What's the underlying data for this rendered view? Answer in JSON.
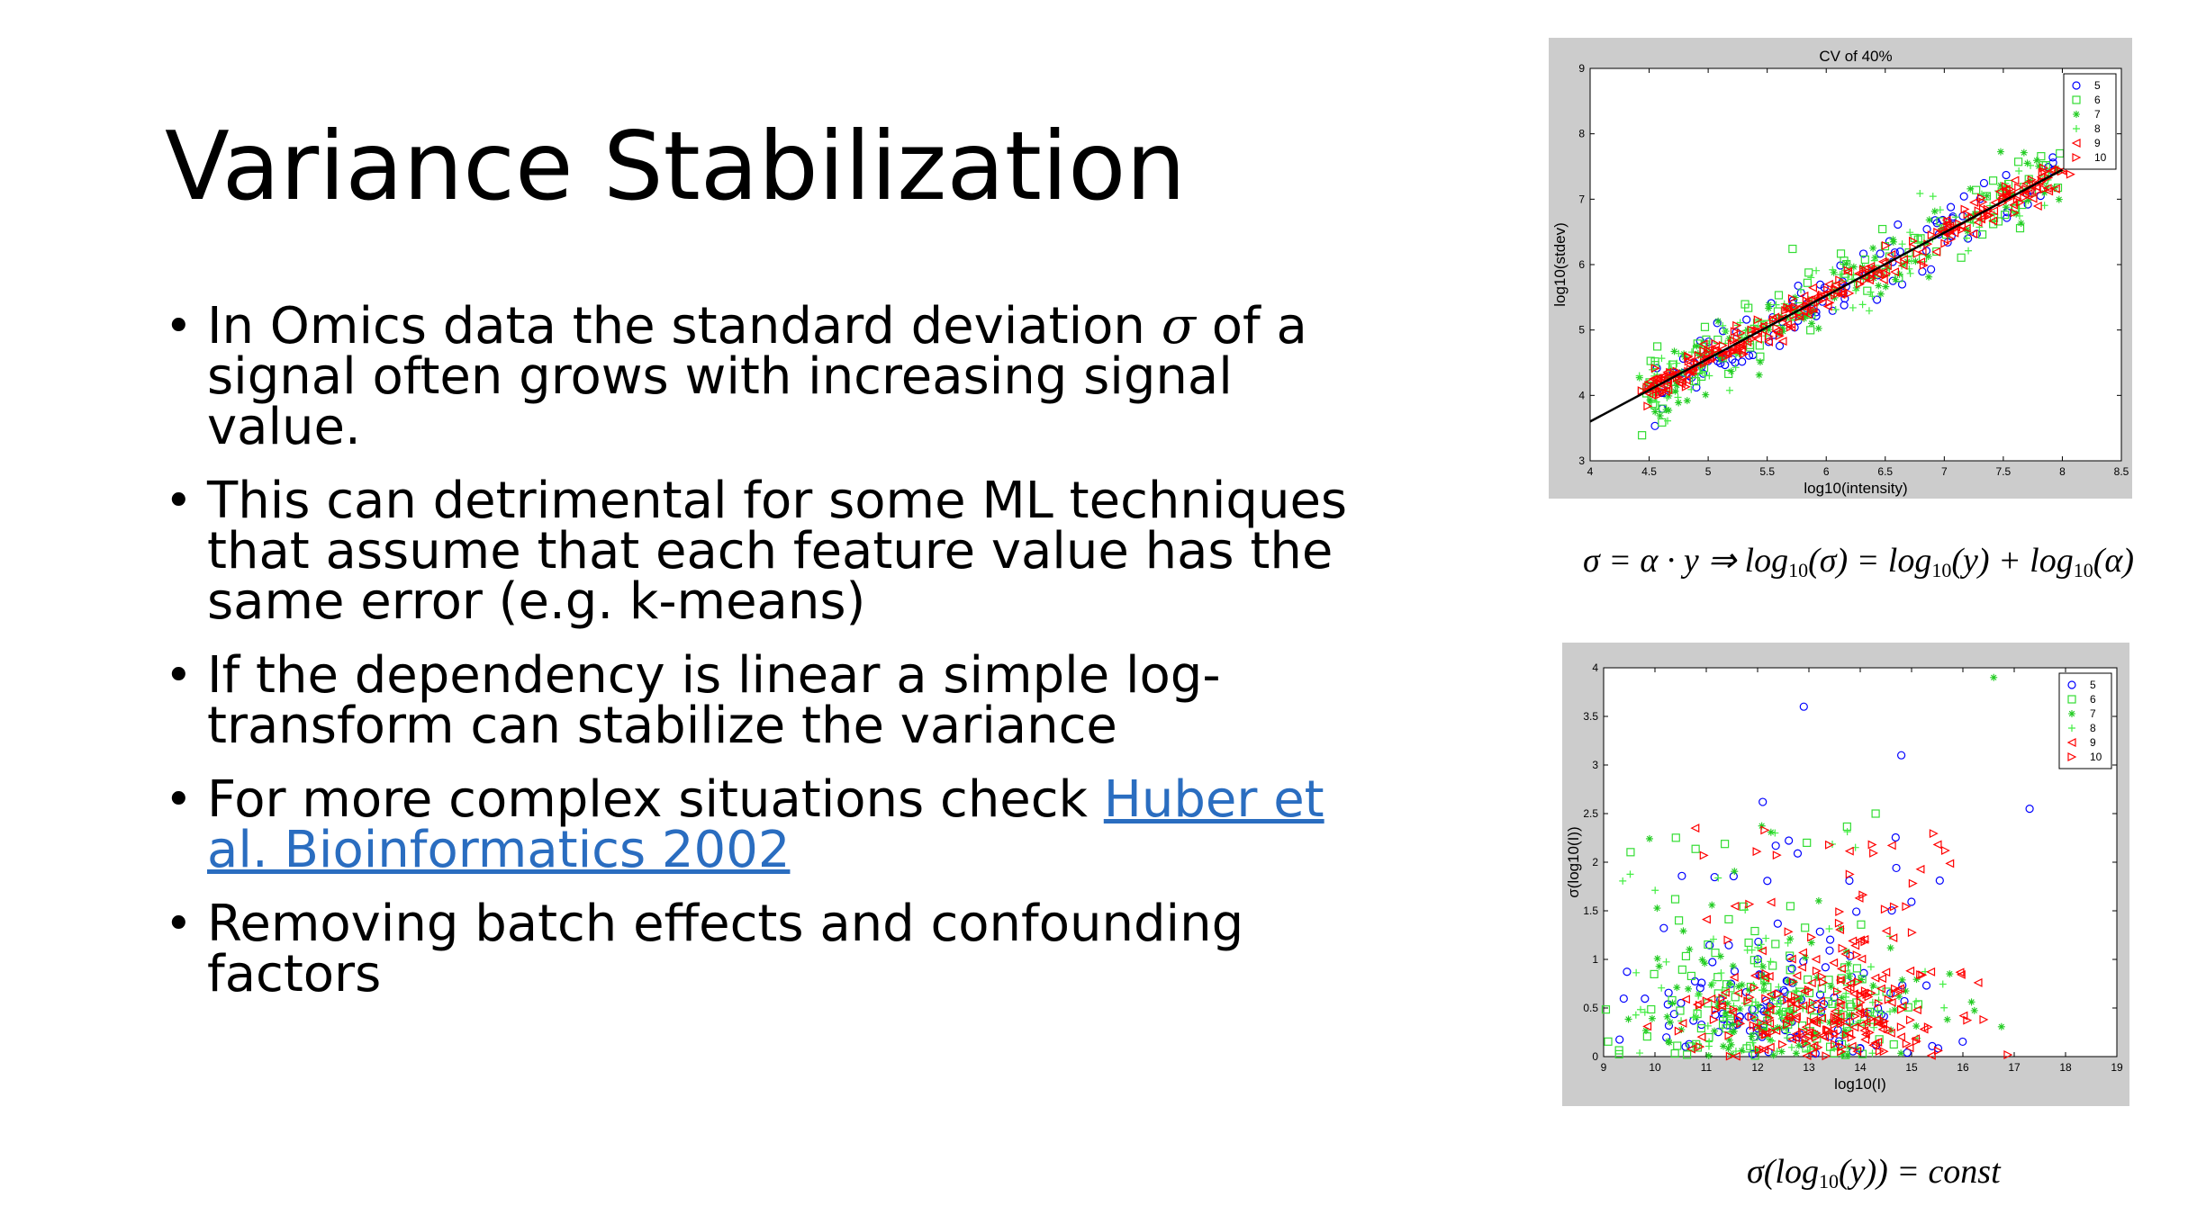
{
  "slide": {
    "title": "Variance Stabilization",
    "bullets": [
      {
        "pre": "In Omics data the standard deviation ",
        "sym": "σ",
        "post": " of a signal often grows with increasing signal value."
      },
      {
        "text": "This can detrimental for some ML techniques that assume that each feature value has the same error (e.g. k-means)"
      },
      {
        "text": "If the dependency is linear a simple log-transform can stabilize the variance"
      },
      {
        "pre": "For more complex situations check ",
        "link": "Huber et al. Bioinformatics 2002"
      },
      {
        "text": "Removing batch effects and confounding factors"
      }
    ],
    "bullet_glyph": "•"
  },
  "formulas": {
    "top": {
      "lhs": "σ = α · y ⇒ log",
      "sub": "10",
      "a": "(σ) = log",
      "b": "(y) + log",
      "c": "(α)"
    },
    "bottom": {
      "pre": "σ(log",
      "sub": "10",
      "post": "(y)) = ",
      "const": "const"
    }
  },
  "chart_data": [
    {
      "type": "scatter",
      "title": "CV of 40%",
      "xlabel": "log10(intensity)",
      "ylabel": "log10(stdev)",
      "xlim": [
        4,
        8.5
      ],
      "ylim": [
        3,
        9
      ],
      "xticks": [
        "4",
        "4.5",
        "5",
        "5.5",
        "6",
        "6.5",
        "7",
        "7.5",
        "8",
        "8.5"
      ],
      "yticks": [
        "3",
        "4",
        "5",
        "6",
        "7",
        "8",
        "9"
      ],
      "legend": [
        {
          "label": "5",
          "color": "#0000ff",
          "marker": "circle"
        },
        {
          "label": "6",
          "color": "#33dd33",
          "marker": "square"
        },
        {
          "label": "7",
          "color": "#22cc22",
          "marker": "star"
        },
        {
          "label": "8",
          "color": "#44ee44",
          "marker": "plus"
        },
        {
          "label": "9",
          "color": "#ff0000",
          "marker": "triangle-left"
        },
        {
          "label": "10",
          "color": "#ff0000",
          "marker": "triangle-right"
        }
      ],
      "fit_line": {
        "x": [
          4,
          8
        ],
        "y": [
          3.6,
          7.45
        ],
        "color": "#000000"
      },
      "legend_position": "top-right"
    },
    {
      "type": "scatter",
      "title": "",
      "xlabel": "log10(I)",
      "ylabel": "σ(log10(I))",
      "xlim": [
        9,
        19
      ],
      "ylim": [
        0,
        4
      ],
      "xticks": [
        "9",
        "10",
        "11",
        "12",
        "13",
        "14",
        "15",
        "16",
        "17",
        "18",
        "19"
      ],
      "yticks": [
        "0",
        "0.5",
        "1",
        "1.5",
        "2",
        "2.5",
        "3",
        "3.5",
        "4"
      ],
      "legend": [
        {
          "label": "5",
          "color": "#0000ff",
          "marker": "circle"
        },
        {
          "label": "6",
          "color": "#33dd33",
          "marker": "square"
        },
        {
          "label": "7",
          "color": "#22cc22",
          "marker": "star"
        },
        {
          "label": "8",
          "color": "#44ee44",
          "marker": "plus"
        },
        {
          "label": "9",
          "color": "#ff0000",
          "marker": "triangle-left"
        },
        {
          "label": "10",
          "color": "#ff0000",
          "marker": "triangle-right"
        }
      ],
      "legend_position": "top-right"
    }
  ]
}
